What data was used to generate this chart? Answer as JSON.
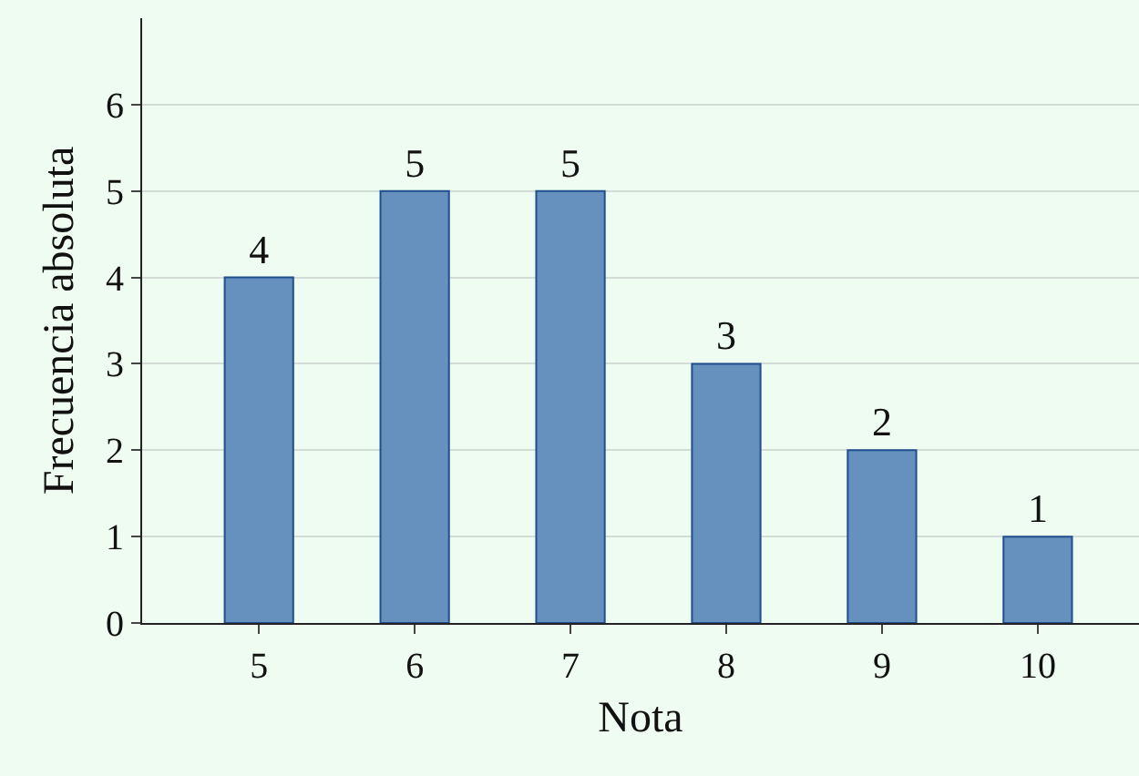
{
  "chart_data": {
    "type": "bar",
    "xlabel": "Nota",
    "ylabel": "Frecuencia absoluta",
    "categories": [
      "5",
      "6",
      "7",
      "8",
      "9",
      "10"
    ],
    "series": [
      {
        "color": "#6690bd",
        "values": [
          4,
          5,
          5,
          3,
          2,
          1
        ]
      }
    ],
    "ylim": [
      0,
      7
    ],
    "yticks": [
      0,
      1,
      2,
      3,
      4,
      5,
      6
    ],
    "grid": "y",
    "data_labels": true,
    "legend": false
  }
}
